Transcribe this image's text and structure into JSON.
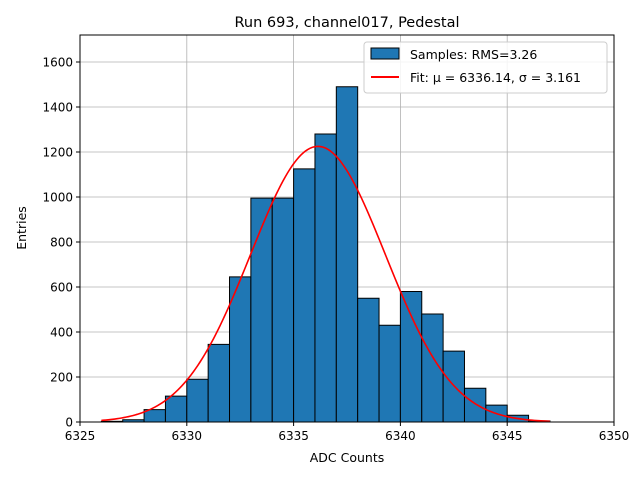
{
  "chart_data": {
    "type": "bar",
    "title": "Run 693, channel017, Pedestal",
    "xlabel": "ADC Counts",
    "ylabel": "Entries",
    "xlim": [
      6325,
      6350
    ],
    "ylim": [
      0,
      1720
    ],
    "xticks": [
      6325,
      6330,
      6335,
      6340,
      6345,
      6350
    ],
    "yticks": [
      0,
      200,
      400,
      600,
      800,
      1000,
      1200,
      1400,
      1600
    ],
    "grid": true,
    "legend_position": "top-right",
    "bins": {
      "edges": [
        6326,
        6327,
        6328,
        6329,
        6330,
        6331,
        6332,
        6333,
        6334,
        6335,
        6336,
        6337,
        6338,
        6339,
        6340,
        6341,
        6342,
        6343,
        6344,
        6345,
        6346,
        6347
      ],
      "values": [
        3,
        10,
        55,
        115,
        190,
        345,
        645,
        995,
        995,
        1125,
        1280,
        1490,
        550,
        430,
        580,
        480,
        315,
        150,
        75,
        30,
        5
      ]
    },
    "fit": {
      "mu": 6336.14,
      "sigma": 3.161,
      "amplitude": 1225,
      "x_range": [
        6326,
        6347
      ]
    },
    "series": [
      {
        "name": "Samples: RMS=3.26",
        "kind": "histogram",
        "color": "#1f77b4"
      },
      {
        "name": "Fit: μ = 6336.14, σ = 3.161",
        "kind": "line",
        "color": "#ff0000"
      }
    ]
  }
}
